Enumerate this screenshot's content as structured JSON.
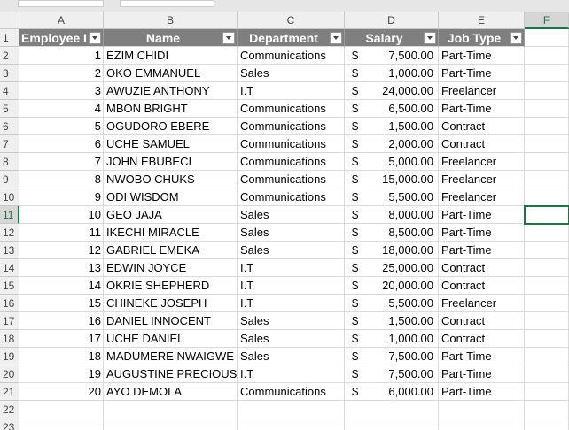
{
  "column_letters": [
    "A",
    "B",
    "C",
    "D",
    "E",
    "F"
  ],
  "row_numbers": [
    1,
    2,
    3,
    4,
    5,
    6,
    7,
    8,
    9,
    10,
    11,
    12,
    13,
    14,
    15,
    16,
    17,
    18,
    19,
    20,
    21,
    22,
    23
  ],
  "table": {
    "headers": [
      "Employee I",
      "Name",
      "Department",
      "Salary",
      "Job Type"
    ],
    "rows": [
      [
        1,
        "EZIM CHIDI",
        "Communications",
        "$",
        "7,500.00",
        "Part-Time"
      ],
      [
        2,
        "OKO EMMANUEL",
        "Sales",
        "$",
        "1,000.00",
        "Part-Time"
      ],
      [
        3,
        "AWUZIE ANTHONY",
        "I.T",
        "$",
        "24,000.00",
        "Freelancer"
      ],
      [
        4,
        "MBON BRIGHT",
        "Communications",
        "$",
        "6,500.00",
        "Part-Time"
      ],
      [
        5,
        "OGUDORO EBERE",
        "Communications",
        "$",
        "1,500.00",
        "Contract"
      ],
      [
        6,
        "UCHE SAMUEL",
        "Communications",
        "$",
        "2,000.00",
        "Contract"
      ],
      [
        7,
        "JOHN EBUBECI",
        "Communications",
        "$",
        "5,000.00",
        "Freelancer"
      ],
      [
        8,
        "NWOBO CHUKS",
        "Communications",
        "$",
        "15,000.00",
        "Freelancer"
      ],
      [
        9,
        "ODI WISDOM",
        "Communications",
        "$",
        "5,500.00",
        "Freelancer"
      ],
      [
        10,
        "GEO JAJA",
        "Sales",
        "$",
        "8,000.00",
        "Part-Time"
      ],
      [
        11,
        "IKECHI MIRACLE",
        "Sales",
        "$",
        "8,500.00",
        "Part-Time"
      ],
      [
        12,
        "GABRIEL EMEKA",
        "Sales",
        "$",
        "18,000.00",
        "Part-Time"
      ],
      [
        13,
        "EDWIN JOYCE",
        "I.T",
        "$",
        "25,000.00",
        "Contract"
      ],
      [
        14,
        "OKRIE SHEPHERD",
        "I.T",
        "$",
        "20,000.00",
        "Contract"
      ],
      [
        15,
        "CHINEKE JOSEPH",
        "I.T",
        "$",
        "5,500.00",
        "Freelancer"
      ],
      [
        16,
        "DANIEL INNOCENT",
        "Sales",
        "$",
        "1,500.00",
        "Contract"
      ],
      [
        17,
        "UCHE DANIEL",
        "Sales",
        "$",
        "1,000.00",
        "Contract"
      ],
      [
        18,
        "MADUMERE NWAIGWE",
        "Sales",
        "$",
        "7,500.00",
        "Part-Time"
      ],
      [
        19,
        "AUGUSTINE PRECIOUS",
        "I.T",
        "$",
        "7,500.00",
        "Part-Time"
      ],
      [
        20,
        "AYO DEMOLA",
        "Communications",
        "$",
        "6,000.00",
        "Part-Time"
      ]
    ]
  }
}
